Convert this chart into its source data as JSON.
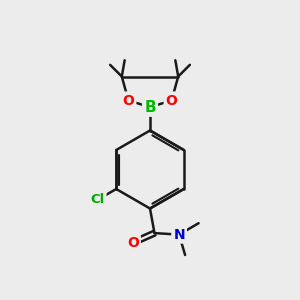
{
  "bg_color": "#ececec",
  "bond_color": "#1a1a1a",
  "bond_width": 1.8,
  "atom_colors": {
    "C": "#1a1a1a",
    "O": "#ff0000",
    "N": "#0000cc",
    "B": "#00bb00",
    "Cl": "#00aa00"
  },
  "font_size": 10,
  "fig_size": [
    3.0,
    3.0
  ],
  "dpi": 100
}
